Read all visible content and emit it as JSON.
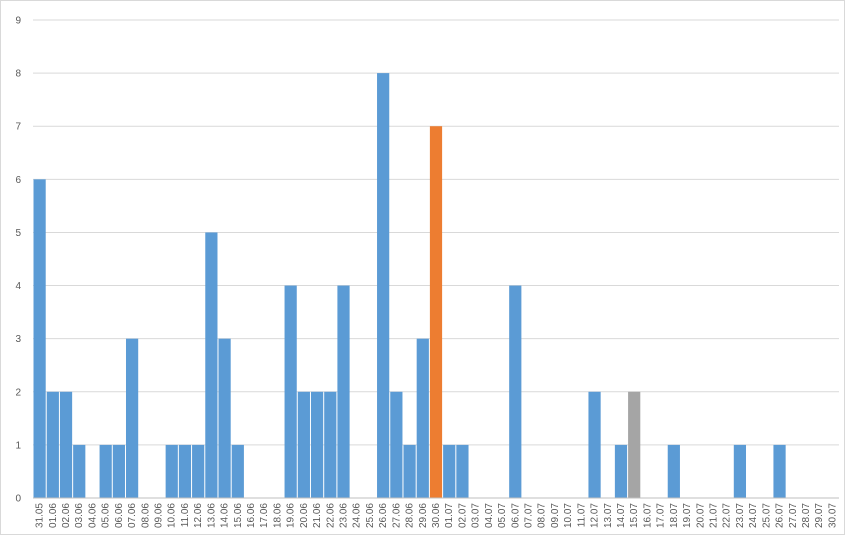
{
  "chart_data": {
    "type": "bar",
    "title": "",
    "xlabel": "",
    "ylabel": "",
    "ylim": [
      0,
      9
    ],
    "yticks": [
      0,
      1,
      2,
      3,
      4,
      5,
      6,
      7,
      8,
      9
    ],
    "grid": true,
    "categories": [
      "31.05",
      "01.06",
      "02.06",
      "03.06",
      "04.06",
      "05.06",
      "06.06",
      "07.06",
      "08.06",
      "09.06",
      "10.06",
      "11.06",
      "12.06",
      "13.06",
      "14.06",
      "15.06",
      "16.06",
      "17.06",
      "18.06",
      "19.06",
      "20.06",
      "21.06",
      "22.06",
      "23.06",
      "24.06",
      "25.06",
      "26.06",
      "27.06",
      "28.06",
      "29.06",
      "30.06",
      "01.07",
      "02.07",
      "03.07",
      "04.07",
      "05.07",
      "06.07",
      "07.07",
      "08.07",
      "09.07",
      "10.07",
      "11.07",
      "12.07",
      "13.07",
      "14.07",
      "15.07",
      "16.07",
      "17.07",
      "18.07",
      "19.07",
      "20.07",
      "21.07",
      "22.07",
      "23.07",
      "24.07",
      "25.07",
      "26.07",
      "27.07",
      "28.07",
      "29.07",
      "30.07"
    ],
    "values": [
      6,
      2,
      2,
      1,
      0,
      1,
      1,
      3,
      0,
      0,
      1,
      1,
      1,
      5,
      3,
      1,
      0,
      0,
      0,
      4,
      2,
      2,
      2,
      4,
      0,
      0,
      8,
      2,
      1,
      3,
      7,
      1,
      1,
      0,
      0,
      0,
      4,
      0,
      0,
      0,
      0,
      0,
      2,
      0,
      1,
      2,
      0,
      0,
      1,
      0,
      0,
      0,
      0,
      1,
      0,
      0,
      1,
      0,
      0,
      0,
      0
    ],
    "colors": {
      "default": "#5b9bd5",
      "highlight_orange": "#ed7d31",
      "highlight_gray": "#a5a5a5"
    },
    "highlights": {
      "30.06": "highlight_orange",
      "15.07": "highlight_gray"
    }
  }
}
